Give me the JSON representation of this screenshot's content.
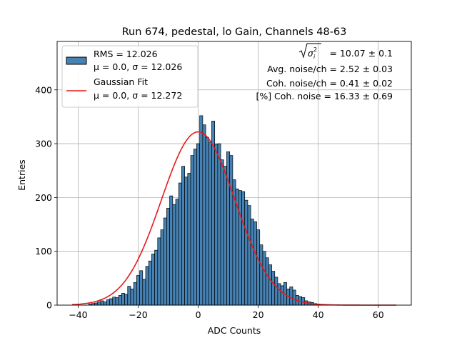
{
  "chart_data": {
    "type": "histogram",
    "title": "Run 674, pedestal, lo Gain, Channels 48-63",
    "xlabel": "ADC Counts",
    "ylabel": "Entries",
    "xlim": [
      -47,
      71
    ],
    "ylim": [
      0,
      490
    ],
    "xticks": [
      -40,
      -20,
      0,
      20,
      40,
      60
    ],
    "yticks": [
      0,
      100,
      200,
      300,
      400
    ],
    "grid": true,
    "bin_width": 1,
    "hist_color": "#4682b4",
    "fit_color": "#e41a1c",
    "legend_position": "top-left",
    "legend": [
      {
        "line1": "RMS = 12.026",
        "line2": "μ = 0.0, σ = 12.026"
      },
      {
        "line1": "Gaussian Fit",
        "line2": "μ = 0.0, σ = 12.272"
      }
    ],
    "annotations": {
      "sqrt_noise": {
        "value": "= 10.07 ± 0.1"
      },
      "lines": [
        "Avg. noise/ch = 2.52 ± 0.03",
        "Coh. noise/ch = 0.41 ± 0.02",
        "[%] Coh. noise = 16.33 ± 0.69"
      ]
    },
    "bins": [
      {
        "x": -36,
        "y": 2
      },
      {
        "x": -35,
        "y": 3
      },
      {
        "x": -34,
        "y": 4
      },
      {
        "x": -33,
        "y": 6
      },
      {
        "x": -32,
        "y": 8
      },
      {
        "x": -31,
        "y": 6
      },
      {
        "x": -30,
        "y": 10
      },
      {
        "x": -29,
        "y": 12
      },
      {
        "x": -28,
        "y": 15
      },
      {
        "x": -27,
        "y": 14
      },
      {
        "x": -26,
        "y": 18
      },
      {
        "x": -25,
        "y": 22
      },
      {
        "x": -24,
        "y": 20
      },
      {
        "x": -23,
        "y": 35
      },
      {
        "x": -22,
        "y": 30
      },
      {
        "x": -21,
        "y": 42
      },
      {
        "x": -20,
        "y": 55
      },
      {
        "x": -19,
        "y": 64
      },
      {
        "x": -18,
        "y": 48
      },
      {
        "x": -17,
        "y": 72
      },
      {
        "x": -16,
        "y": 82
      },
      {
        "x": -15,
        "y": 95
      },
      {
        "x": -14,
        "y": 102
      },
      {
        "x": -13,
        "y": 125
      },
      {
        "x": -12,
        "y": 140
      },
      {
        "x": -11,
        "y": 162
      },
      {
        "x": -10,
        "y": 180
      },
      {
        "x": -9,
        "y": 203
      },
      {
        "x": -8,
        "y": 187
      },
      {
        "x": -7,
        "y": 197
      },
      {
        "x": -6,
        "y": 227
      },
      {
        "x": -5,
        "y": 258
      },
      {
        "x": -4,
        "y": 238
      },
      {
        "x": -3,
        "y": 245
      },
      {
        "x": -2,
        "y": 278
      },
      {
        "x": -1,
        "y": 290
      },
      {
        "x": 0,
        "y": 300
      },
      {
        "x": 1,
        "y": 352
      },
      {
        "x": 2,
        "y": 335
      },
      {
        "x": 3,
        "y": 312
      },
      {
        "x": 4,
        "y": 303
      },
      {
        "x": 5,
        "y": 342
      },
      {
        "x": 6,
        "y": 299
      },
      {
        "x": 7,
        "y": 300
      },
      {
        "x": 8,
        "y": 270
      },
      {
        "x": 9,
        "y": 258
      },
      {
        "x": 10,
        "y": 285
      },
      {
        "x": 11,
        "y": 278
      },
      {
        "x": 12,
        "y": 233
      },
      {
        "x": 13,
        "y": 216
      },
      {
        "x": 14,
        "y": 213
      },
      {
        "x": 15,
        "y": 211
      },
      {
        "x": 16,
        "y": 195
      },
      {
        "x": 17,
        "y": 185
      },
      {
        "x": 18,
        "y": 160
      },
      {
        "x": 19,
        "y": 155
      },
      {
        "x": 20,
        "y": 140
      },
      {
        "x": 21,
        "y": 112
      },
      {
        "x": 22,
        "y": 100
      },
      {
        "x": 23,
        "y": 88
      },
      {
        "x": 24,
        "y": 75
      },
      {
        "x": 25,
        "y": 63
      },
      {
        "x": 26,
        "y": 52
      },
      {
        "x": 27,
        "y": 40
      },
      {
        "x": 28,
        "y": 36
      },
      {
        "x": 29,
        "y": 42
      },
      {
        "x": 30,
        "y": 30
      },
      {
        "x": 31,
        "y": 34
      },
      {
        "x": 32,
        "y": 28
      },
      {
        "x": 33,
        "y": 18
      },
      {
        "x": 34,
        "y": 16
      },
      {
        "x": 35,
        "y": 14
      },
      {
        "x": 36,
        "y": 8
      },
      {
        "x": 37,
        "y": 6
      },
      {
        "x": 38,
        "y": 5
      },
      {
        "x": 39,
        "y": 3
      },
      {
        "x": 40,
        "y": 2
      },
      {
        "x": 41,
        "y": 1
      },
      {
        "x": 42,
        "y": 1
      }
    ],
    "fit": {
      "mu": 0.0,
      "sigma": 12.272,
      "amplitude": 322,
      "x_range": [
        -42,
        66
      ]
    }
  }
}
